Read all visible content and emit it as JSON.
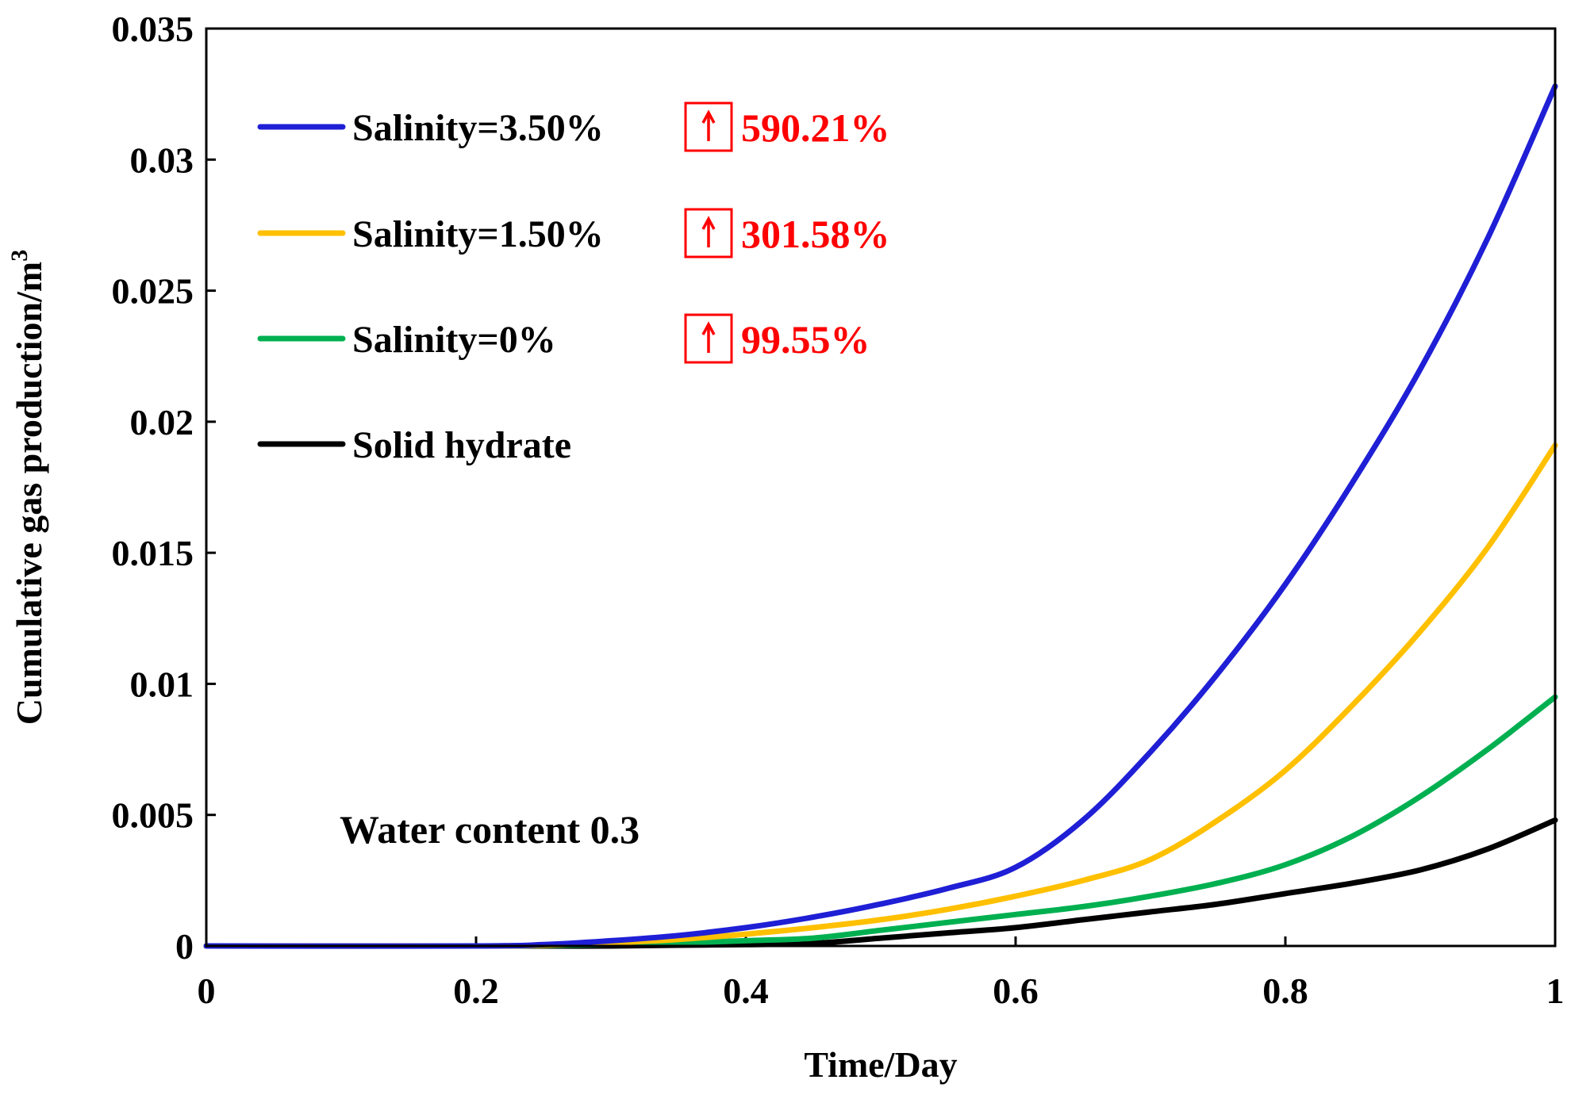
{
  "chart_data": {
    "type": "line",
    "title": "",
    "xlabel": "Time/Day",
    "ylabel": "Cumulative gas production/m",
    "ylabel_superscript": "3",
    "xlim": [
      0,
      1
    ],
    "ylim": [
      0,
      0.035
    ],
    "xticks": [
      "0",
      "0.2",
      "0.4",
      "0.6",
      "0.8",
      "1"
    ],
    "yticks": [
      "0",
      "0.005",
      "0.01",
      "0.015",
      "0.02",
      "0.025",
      "0.03",
      "0.035"
    ],
    "grid": false,
    "legend_position": "top-left",
    "annotation": "Water content 0.3",
    "x": [
      0.2,
      0.25,
      0.3,
      0.35,
      0.4,
      0.45,
      0.5,
      0.55,
      0.6,
      0.65,
      0.7,
      0.75,
      0.8,
      0.85,
      0.9,
      0.95,
      1.0
    ],
    "series": [
      {
        "name": "Salinity=3.50%",
        "color": "#1f1fd6",
        "increase": "590.21%",
        "values": [
          0,
          5e-05,
          0.0002,
          0.0004,
          0.0007,
          0.0011,
          0.0016,
          0.0022,
          0.003,
          0.0048,
          0.0074,
          0.0104,
          0.0138,
          0.0177,
          0.022,
          0.027,
          0.0328
        ]
      },
      {
        "name": "Salinity=1.50%",
        "color": "#ffc000",
        "increase": "301.58%",
        "values": [
          0,
          3e-05,
          0.00012,
          0.00025,
          0.00045,
          0.0007,
          0.001,
          0.0014,
          0.0019,
          0.0025,
          0.0033,
          0.0048,
          0.0067,
          0.0092,
          0.012,
          0.0152,
          0.0191
        ]
      },
      {
        "name": "Salinity=0%",
        "color": "#00b050",
        "increase": "99.55%",
        "values": [
          0,
          2e-05,
          6e-05,
          0.00012,
          0.0002,
          0.0003,
          0.0006,
          0.0009,
          0.0012,
          0.0015,
          0.0019,
          0.0024,
          0.0031,
          0.0042,
          0.0057,
          0.0075,
          0.0095
        ]
      },
      {
        "name": "Solid hydrate",
        "color": "#000000",
        "values": [
          0,
          0,
          0,
          3e-05,
          5e-05,
          0.0001,
          0.0003,
          0.0005,
          0.0007,
          0.001,
          0.0013,
          0.0016,
          0.002,
          0.0024,
          0.0029,
          0.0037,
          0.0048
        ]
      }
    ]
  }
}
